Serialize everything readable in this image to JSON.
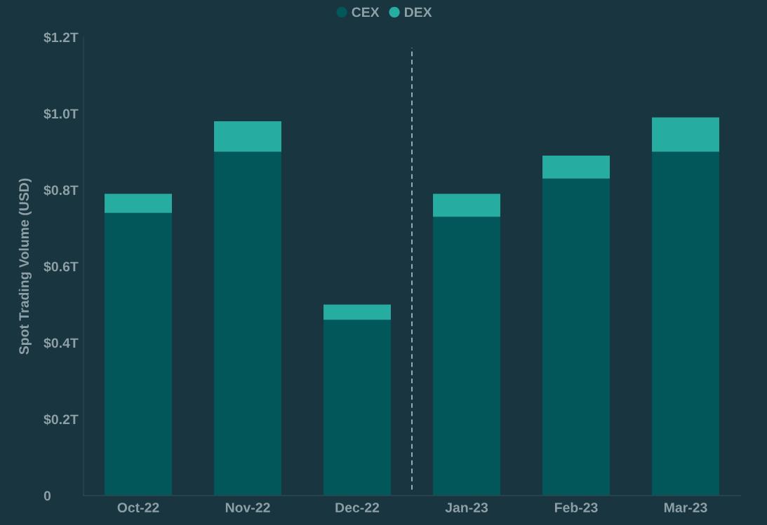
{
  "chart_data": {
    "type": "bar",
    "stacked": true,
    "ylabel": "Spot Trading Volume (USD)",
    "categories": [
      "Oct-22",
      "Nov-22",
      "Dec-22",
      "Jan-23",
      "Feb-23",
      "Mar-23"
    ],
    "series": [
      {
        "name": "CEX",
        "color": "#02575b",
        "values": [
          0.74,
          0.9,
          0.46,
          0.73,
          0.83,
          0.9
        ]
      },
      {
        "name": "DEX",
        "color": "#27aca2",
        "values": [
          0.05,
          0.08,
          0.04,
          0.06,
          0.06,
          0.09
        ]
      }
    ],
    "ylim": [
      0,
      1.2
    ],
    "yticks": [
      0,
      {
        "value": 0.2,
        "label": "$0.2T"
      },
      {
        "value": 0.4,
        "label": "$0.4T"
      },
      {
        "value": 0.6,
        "label": "$0.6T"
      },
      {
        "value": 0.8,
        "label": "$0.8T"
      },
      {
        "value": 1.0,
        "label": "$1.0T"
      },
      {
        "value": 1.2,
        "label": "$1.2T"
      }
    ],
    "legend": "top"
  }
}
